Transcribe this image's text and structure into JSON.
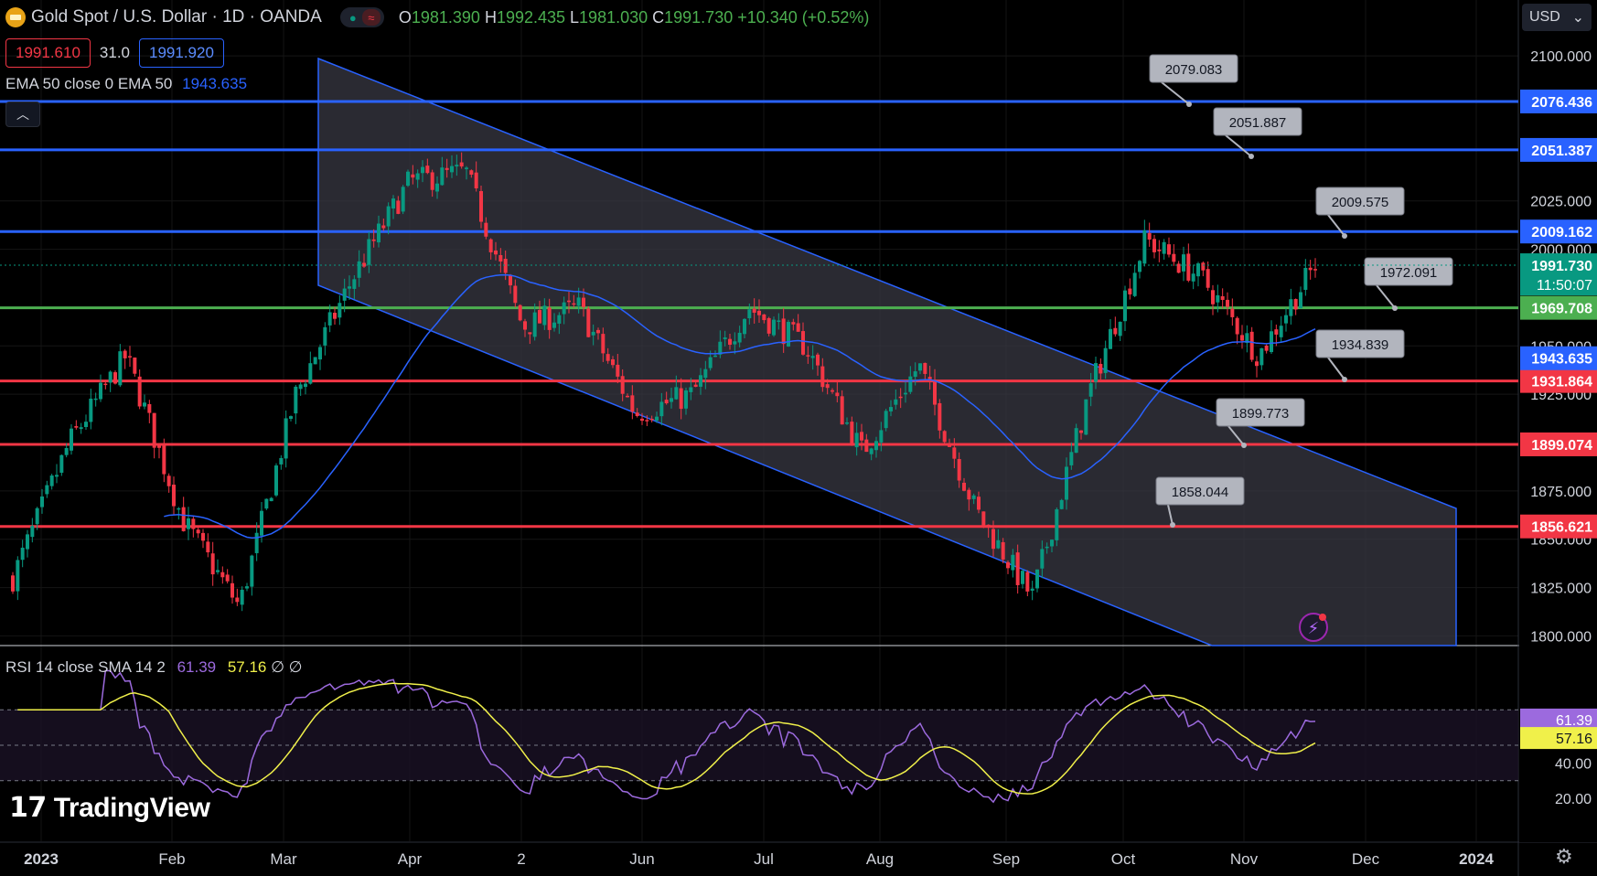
{
  "header": {
    "title": "Gold Spot / U.S. Dollar · 1D · OANDA",
    "ohlc": [
      {
        "key": "O",
        "value": "1981.390"
      },
      {
        "key": "H",
        "value": "1992.435"
      },
      {
        "key": "L",
        "value": "1981.030"
      },
      {
        "key": "C",
        "value": "1991.730"
      }
    ],
    "change": "+10.340 (+0.52%)"
  },
  "trade": {
    "sell": "1991.610",
    "spread": "31.0",
    "buy": "1991.920"
  },
  "ema_legend": {
    "label": "EMA 50 close 0 EMA 50",
    "value": "1943.635"
  },
  "currency": {
    "label": "USD"
  },
  "price_scale": {
    "ticks": [
      "2100.000",
      "2025.000",
      "2000.000",
      "1950.000",
      "1925.000",
      "1875.000",
      "1850.000",
      "1825.000",
      "1800.000"
    ]
  },
  "levels": [
    {
      "price": "2076.436",
      "color": "#2962ff"
    },
    {
      "price": "2051.387",
      "color": "#2962ff"
    },
    {
      "price": "2009.162",
      "color": "#2962ff"
    },
    {
      "price": "1969.708",
      "color": "#4caf50"
    },
    {
      "price": "1931.864",
      "color": "#f23645"
    },
    {
      "price": "1899.074",
      "color": "#f23645"
    },
    {
      "price": "1856.621",
      "color": "#f23645"
    }
  ],
  "price_callouts": [
    "2079.083",
    "2051.887",
    "2009.575",
    "1972.091",
    "1934.839",
    "1899.773",
    "1858.044"
  ],
  "last_price": {
    "price": "1991.730",
    "countdown": "11:50:07",
    "color": "#089981"
  },
  "ema_last": {
    "price": "1943.635",
    "color": "#2962ff"
  },
  "time_axis": [
    "2023",
    "Feb",
    "Mar",
    "Apr",
    "2",
    "Jun",
    "Jul",
    "Aug",
    "Sep",
    "Oct",
    "Nov",
    "Dec",
    "2024"
  ],
  "rsi": {
    "label": "RSI 14 close SMA 14 2",
    "rsi_value": "61.39",
    "sma_value": "57.16",
    "extra": "∅ ∅",
    "ticks": [
      "40.00",
      "20.00"
    ]
  },
  "brand": {
    "name": "TradingView"
  },
  "colors": {
    "up": "#089981",
    "down": "#f23645",
    "ema": "#2962ff",
    "channel": "#2a2a3a",
    "rsi": "#9c6ade",
    "rsi_sma": "#f0f04a"
  },
  "chart_data": {
    "type": "candlestick",
    "symbol": "Gold Spot / U.S. Dollar",
    "interval": "1D",
    "ylim": [
      1795,
      2110
    ],
    "x": [
      "2023",
      "Feb",
      "Mar",
      "Apr",
      "2",
      "Jun",
      "Jul",
      "Aug",
      "Sep",
      "Oct",
      "Nov",
      "Dec",
      "2024"
    ],
    "close_path": [
      {
        "x": "2023",
        "y": 1830
      },
      {
        "x": "Jan mid",
        "y": 1900
      },
      {
        "x": "Feb",
        "y": 1945
      },
      {
        "x": "Feb mid",
        "y": 1860
      },
      {
        "x": "Mar",
        "y": 1815
      },
      {
        "x": "Mar mid",
        "y": 1925
      },
      {
        "x": "Apr",
        "y": 1985
      },
      {
        "x": "Apr mid",
        "y": 2035
      },
      {
        "x": "2",
        "y": 2040
      },
      {
        "x": "May end",
        "y": 1960
      },
      {
        "x": "Jun",
        "y": 1970
      },
      {
        "x": "Jun end",
        "y": 1915
      },
      {
        "x": "Jul",
        "y": 1925
      },
      {
        "x": "Jul mid",
        "y": 1970
      },
      {
        "x": "Aug",
        "y": 1950
      },
      {
        "x": "Aug mid",
        "y": 1895
      },
      {
        "x": "Sep",
        "y": 1940
      },
      {
        "x": "Sep end",
        "y": 1865
      },
      {
        "x": "Oct",
        "y": 1820
      },
      {
        "x": "Oct mid",
        "y": 1925
      },
      {
        "x": "Oct end",
        "y": 2005
      },
      {
        "x": "Nov",
        "y": 1985
      },
      {
        "x": "Nov mid",
        "y": 1945
      },
      {
        "x": "Nov end",
        "y": 1992
      }
    ],
    "ema50_last": 1943.635,
    "horizontal_levels": [
      2076.436,
      2051.387,
      2009.162,
      1969.708,
      1931.864,
      1899.074,
      1856.621
    ],
    "rsi_last": 61.39,
    "rsi_sma_last": 57.16
  }
}
